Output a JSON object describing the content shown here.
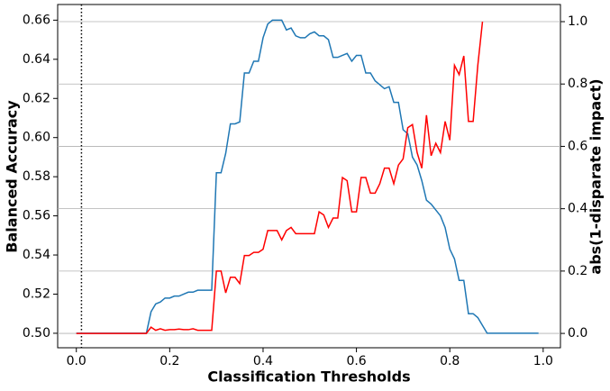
{
  "chart_data": {
    "type": "line",
    "xlabel": "Classification Thresholds",
    "ylabel": "Balanced Accuracy",
    "y2label": "abs(1-disparate impact)",
    "ylabel_color": "blue",
    "y2label_color": "red",
    "x": [
      0,
      0.01,
      0.02,
      0.03,
      0.04,
      0.05,
      0.06,
      0.07,
      0.08,
      0.09,
      0.1,
      0.11,
      0.12,
      0.13,
      0.14,
      0.15,
      0.16,
      0.17,
      0.18,
      0.19,
      0.2,
      0.21,
      0.22,
      0.23,
      0.24,
      0.25,
      0.26,
      0.27,
      0.28,
      0.29,
      0.3,
      0.31,
      0.32,
      0.33,
      0.34,
      0.35,
      0.36,
      0.37,
      0.38,
      0.39,
      0.4,
      0.41,
      0.42,
      0.43,
      0.44,
      0.45,
      0.46,
      0.47,
      0.48,
      0.49,
      0.5,
      0.51,
      0.52,
      0.53,
      0.54,
      0.55,
      0.56,
      0.57,
      0.58,
      0.59,
      0.6,
      0.61,
      0.62,
      0.63,
      0.64,
      0.65,
      0.66,
      0.67,
      0.68,
      0.69,
      0.7,
      0.71,
      0.72,
      0.73,
      0.74,
      0.75,
      0.76,
      0.77,
      0.78,
      0.79,
      0.8,
      0.81,
      0.82,
      0.83,
      0.84,
      0.85,
      0.86,
      0.87,
      0.88,
      0.89,
      0.9,
      0.91,
      0.92,
      0.93,
      0.94,
      0.95,
      0.96,
      0.97,
      0.98,
      0.99
    ],
    "series": [
      {
        "name": "Balanced Accuracy",
        "color": "#1f77b4",
        "axis": "y",
        "values": [
          0.5,
          0.5,
          0.5,
          0.5,
          0.5,
          0.5,
          0.5,
          0.5,
          0.5,
          0.5,
          0.5,
          0.5,
          0.5,
          0.5,
          0.5,
          0.5,
          0.511,
          0.515,
          0.516,
          0.518,
          0.518,
          0.519,
          0.519,
          0.52,
          0.521,
          0.521,
          0.522,
          0.522,
          0.522,
          0.522,
          0.582,
          0.582,
          0.592,
          0.607,
          0.607,
          0.608,
          0.633,
          0.633,
          0.639,
          0.639,
          0.651,
          0.658,
          0.66,
          0.66,
          0.66,
          0.655,
          0.656,
          0.652,
          0.651,
          0.651,
          0.653,
          0.654,
          0.652,
          0.652,
          0.65,
          0.641,
          0.641,
          0.642,
          0.643,
          0.639,
          0.642,
          0.642,
          0.633,
          0.633,
          0.629,
          0.627,
          0.625,
          0.626,
          0.618,
          0.618,
          0.604,
          0.602,
          0.59,
          0.586,
          0.578,
          0.568,
          0.566,
          0.563,
          0.56,
          0.554,
          0.543,
          0.538,
          0.527,
          0.527,
          0.51,
          0.51,
          0.508,
          0.504,
          0.5,
          0.5,
          0.5,
          0.5,
          0.5,
          0.5,
          0.5,
          0.5,
          0.5,
          0.5,
          0.5,
          0.5
        ]
      },
      {
        "name": "abs(1-disparate impact)",
        "color": "red",
        "axis": "y2",
        "values": [
          0,
          0,
          0,
          0,
          0,
          0,
          0,
          0,
          0,
          0,
          0,
          0,
          0,
          0,
          0,
          0,
          0.02,
          0.01,
          0.015,
          0.01,
          0.012,
          0.012,
          0.014,
          0.012,
          0.012,
          0.015,
          0.01,
          0.01,
          0.01,
          0.01,
          0.2,
          0.2,
          0.13,
          0.18,
          0.18,
          0.16,
          0.25,
          0.25,
          0.26,
          0.26,
          0.27,
          0.33,
          0.33,
          0.33,
          0.3,
          0.33,
          0.34,
          0.32,
          0.32,
          0.32,
          0.32,
          0.32,
          0.39,
          0.38,
          0.34,
          0.37,
          0.37,
          0.5,
          0.49,
          0.39,
          0.39,
          0.5,
          0.5,
          0.45,
          0.45,
          0.48,
          0.53,
          0.53,
          0.48,
          0.54,
          0.56,
          0.66,
          0.67,
          0.58,
          0.53,
          0.7,
          0.57,
          0.61,
          0.58,
          0.68,
          0.62,
          0.86,
          0.83,
          0.89,
          0.68,
          0.68,
          0.86,
          1.0,
          null,
          null,
          null,
          null,
          null,
          null,
          null,
          null,
          null,
          null,
          null,
          null
        ]
      }
    ],
    "vline": 0.011,
    "xlim": [
      -0.04,
      1.037
    ],
    "ylim": [
      0.4926,
      0.668
    ],
    "y2lim": [
      -0.046,
      1.055
    ],
    "xticks": [
      {
        "value": 0,
        "label": "0.0"
      },
      0.2,
      0.4,
      0.6,
      0.8,
      {
        "value": 1,
        "label": "1.0"
      }
    ],
    "yticks": [
      {
        "value": 0.5,
        "label": "0.50"
      },
      0.52,
      0.54,
      0.56,
      0.58,
      {
        "value": 0.6,
        "label": "0.60"
      },
      0.62,
      0.64,
      0.66
    ],
    "y2ticks": [
      {
        "value": 0,
        "label": "0.0"
      },
      0.2,
      0.4,
      0.6,
      0.8,
      {
        "value": 1,
        "label": "1.0"
      }
    ],
    "grid": "y2"
  }
}
